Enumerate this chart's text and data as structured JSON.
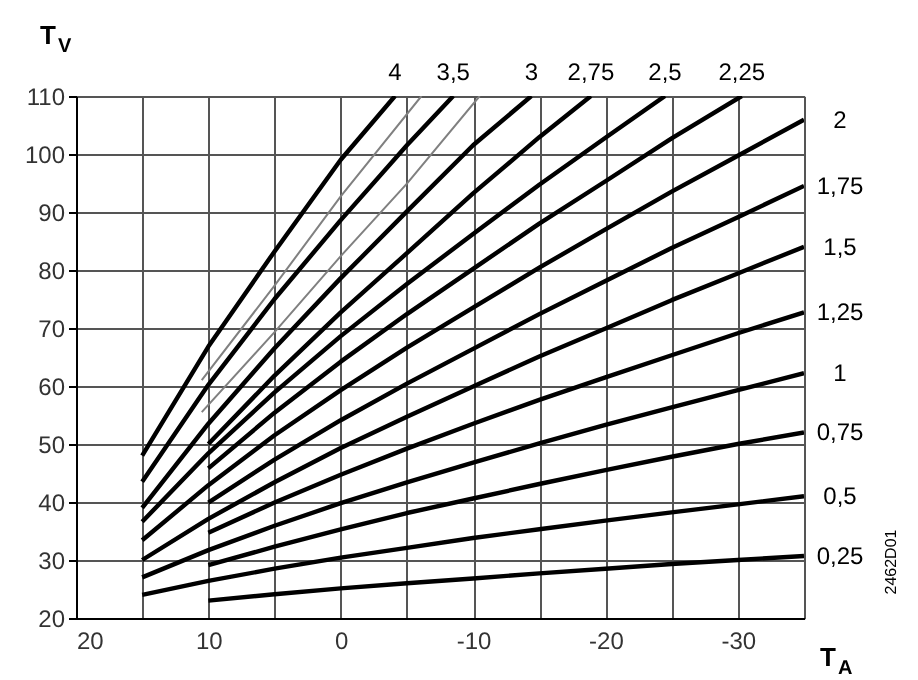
{
  "chart_data": {
    "type": "line",
    "xlabel": "T$_{A}$",
    "ylabel": "T$_{V}$",
    "xlim": [
      20,
      -35
    ],
    "ylim": [
      20,
      110
    ],
    "xticks": [
      20,
      {
        "value": 15,
        "label": null
      },
      10,
      {
        "value": 5,
        "label": null
      },
      0,
      {
        "value": -5,
        "label": null
      },
      -10,
      {
        "value": -15,
        "label": null
      },
      -20,
      {
        "value": -25,
        "label": null
      },
      -30,
      {
        "value": -35,
        "label": null
      }
    ],
    "yticks": [
      20,
      30,
      40,
      50,
      60,
      70,
      80,
      90,
      100,
      110
    ],
    "grid": true,
    "line_style": "solid",
    "annotations": [
      "2462D01"
    ],
    "series": [
      {
        "name": "0,25",
        "color": "#000000",
        "x": [
          10,
          5,
          0,
          -5,
          -10,
          -15,
          -20,
          -25,
          -30,
          -35
        ],
        "values": [
          23.0,
          24.1,
          25.1,
          26.0,
          26.8,
          27.7,
          28.5,
          29.3,
          30.0,
          30.7
        ]
      },
      {
        "name": "0,5",
        "color": "#000000",
        "x": [
          15,
          10,
          5,
          0,
          -5,
          -10,
          -15,
          -20,
          -25,
          -30,
          -35
        ],
        "values": [
          24.0,
          26.4,
          28.5,
          30.4,
          32.1,
          33.8,
          35.3,
          36.8,
          38.2,
          39.6,
          41.0
        ]
      },
      {
        "name": "0,75",
        "color": "#000000",
        "x": [
          10,
          5,
          0,
          -5,
          -10,
          -15,
          -20,
          -25,
          -30,
          -35
        ],
        "values": [
          29.1,
          32.3,
          35.3,
          38.1,
          40.6,
          43.1,
          45.5,
          47.8,
          50.0,
          52.0
        ]
      },
      {
        "name": "1",
        "color": "#000000",
        "x": [
          15,
          10,
          5,
          0,
          -5,
          -10,
          -15,
          -20,
          -25,
          -30,
          -35
        ],
        "values": [
          27.0,
          31.7,
          35.9,
          39.8,
          43.4,
          46.8,
          50.1,
          53.3,
          56.3,
          59.3,
          62.2
        ]
      },
      {
        "name": "1,25",
        "color": "#000000",
        "x": [
          10,
          5,
          0,
          -5,
          -10,
          -15,
          -20,
          -25,
          -30,
          -35
        ],
        "values": [
          34.7,
          39.9,
          44.7,
          49.2,
          53.5,
          57.6,
          61.5,
          65.3,
          69.1,
          72.7
        ]
      },
      {
        "name": "1,5",
        "color": "#000000",
        "x": [
          15,
          10,
          5,
          0,
          -5,
          -10,
          -15,
          -20,
          -25,
          -30,
          -35
        ],
        "values": [
          30.0,
          37.1,
          43.4,
          49.3,
          54.7,
          59.9,
          65.1,
          69.9,
          74.8,
          79.4,
          84.0
        ]
      },
      {
        "name": "1,75",
        "color": "#000000",
        "x": [
          10,
          5,
          0,
          -5,
          -10,
          -15,
          -20,
          -25,
          -30,
          -35
        ],
        "values": [
          39.9,
          47.3,
          54.1,
          60.4,
          66.4,
          72.4,
          78.1,
          83.8,
          89.1,
          94.5
        ]
      },
      {
        "name": "2",
        "color": "#000000",
        "x": [
          15,
          10,
          5,
          0,
          -5,
          -10,
          -15,
          -20,
          -25,
          -30,
          -35
        ],
        "values": [
          33.4,
          42.9,
          51.5,
          59.3,
          66.6,
          73.5,
          80.4,
          87.0,
          93.5,
          99.7,
          105.9
        ]
      },
      {
        "name": "2,25",
        "color": "#000000",
        "x": [
          10,
          5,
          0,
          -5,
          -10,
          -15,
          -20,
          -25,
          -30.3
        ],
        "values": [
          45.8,
          55.4,
          64.2,
          72.4,
          80.2,
          88.0,
          95.3,
          102.7,
          110
        ]
      },
      {
        "name": "2,5",
        "color": "#000000",
        "x": [
          15,
          10,
          5,
          0,
          -5,
          -10,
          -15,
          -20,
          -24.5
        ],
        "values": [
          36.6,
          48.4,
          58.9,
          68.6,
          77.6,
          86.2,
          94.7,
          102.8,
          110
        ]
      },
      {
        "name": "2,75",
        "color": "#000000",
        "x": [
          10,
          5,
          0,
          -5,
          -10,
          -15,
          -18.9
        ],
        "values": [
          50.0,
          61.8,
          72.7,
          82.9,
          93.2,
          102.9,
          110
        ]
      },
      {
        "name": "3",
        "color": "#000000",
        "x": [
          15,
          10,
          5,
          0,
          -5,
          -10,
          -14.4
        ],
        "values": [
          39.0,
          53.5,
          66.5,
          78.6,
          90.1,
          101.5,
          110
        ]
      },
      {
        "color": "#808080",
        "x": [
          10.5,
          5,
          0,
          -5,
          -10.5
        ],
        "values": [
          55.5,
          69.3,
          82.4,
          94.9,
          110
        ]
      },
      {
        "name": "3,5",
        "color": "#000000",
        "x": [
          15,
          10,
          5,
          0,
          -5,
          -8.5
        ],
        "values": [
          43.5,
          60.2,
          75.0,
          88.6,
          101.5,
          110
        ]
      },
      {
        "color": "#808080",
        "x": [
          10.5,
          5,
          0,
          -6.1
        ],
        "values": [
          61.0,
          77.3,
          92.7,
          110
        ]
      },
      {
        "name": "4",
        "color": "#000000",
        "x": [
          15,
          10,
          5,
          0,
          -4.1
        ],
        "values": [
          48.0,
          66.8,
          83.2,
          99.0,
          110
        ]
      }
    ]
  }
}
